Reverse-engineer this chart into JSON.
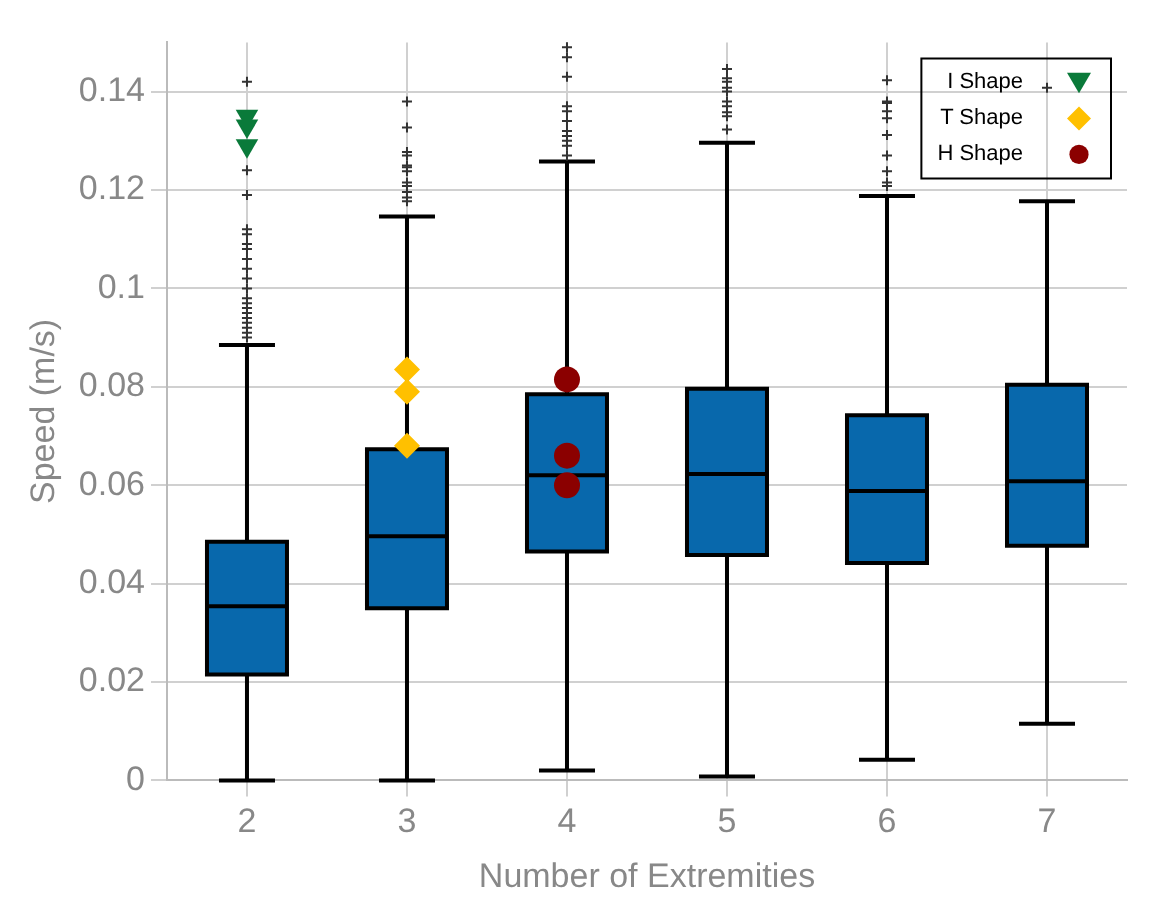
{
  "chart_data": {
    "type": "box",
    "xlabel": "Number of Extremities",
    "ylabel": "Speed (m/s)",
    "categories": [
      "2",
      "3",
      "4",
      "5",
      "6",
      "7"
    ],
    "ylim": [
      0,
      0.15
    ],
    "yticks": [
      0,
      0.02,
      0.04,
      0.06,
      0.08,
      0.1,
      0.12,
      0.14
    ],
    "grid": true,
    "legend": "top right",
    "series": [
      {
        "color": "#0868ac",
        "boxes": [
          {
            "low": 0,
            "q1": 0.0215,
            "median": 0.0354,
            "q3": 0.0485,
            "high": 0.0885,
            "outliers": [
              0.142,
              0.124,
              0.119,
              0.112,
              0.111,
              0.109,
              0.108,
              0.106,
              0.104,
              0.102,
              0.1,
              0.098,
              0.097,
              0.096,
              0.095,
              0.094,
              0.093,
              0.092,
              0.091,
              0.09
            ]
          },
          {
            "low": 0,
            "q1": 0.035,
            "median": 0.0496,
            "q3": 0.0673,
            "high": 0.1146,
            "outliers": [
              0.138,
              0.1327,
              0.1277,
              0.127,
              0.125,
              0.1246,
              0.1238,
              0.1215,
              0.1208,
              0.1196,
              0.1185,
              0.1177
            ]
          },
          {
            "low": 0.002,
            "q1": 0.0465,
            "median": 0.062,
            "q3": 0.0785,
            "high": 0.1258,
            "outliers": [
              0.149,
              0.147,
              0.143,
              0.137,
              0.136,
              0.134,
              0.132,
              0.131,
              0.13,
              0.129,
              0.127
            ]
          },
          {
            "low": 0.0008,
            "q1": 0.0458,
            "median": 0.0623,
            "q3": 0.0796,
            "high": 0.1296,
            "outliers": [
              0.1446,
              0.1427,
              0.142,
              0.1408,
              0.14,
              0.138,
              0.137,
              0.1358,
              0.135,
              0.1323
            ]
          },
          {
            "low": 0.0042,
            "q1": 0.0442,
            "median": 0.0588,
            "q3": 0.0742,
            "high": 0.1188,
            "outliers": [
              0.1423,
              0.138,
              0.1377,
              0.136,
              0.1346,
              0.1312,
              0.127,
              0.1238,
              0.1215,
              0.1208
            ]
          },
          {
            "low": 0.0115,
            "q1": 0.0477,
            "median": 0.0608,
            "q3": 0.0804,
            "high": 0.1177,
            "outliers": [
              0.1408
            ]
          }
        ]
      },
      {
        "type": "scatter",
        "name": "I Shape",
        "color": "#0a7a3a",
        "marker": "triangle",
        "x": [
          "2",
          "2",
          "2"
        ],
        "values": [
          0.135,
          0.133,
          0.129
        ]
      },
      {
        "type": "scatter",
        "name": "T Shape",
        "color": "#ffc000",
        "marker": "diamond",
        "x": [
          "3",
          "3",
          "3"
        ],
        "values": [
          0.0835,
          0.079,
          0.068
        ]
      },
      {
        "type": "scatter",
        "name": "H Shape",
        "color": "#8b0000",
        "marker": "circle",
        "x": [
          "4",
          "4",
          "4"
        ],
        "values": [
          0.0815,
          0.066,
          0.06
        ]
      }
    ]
  }
}
